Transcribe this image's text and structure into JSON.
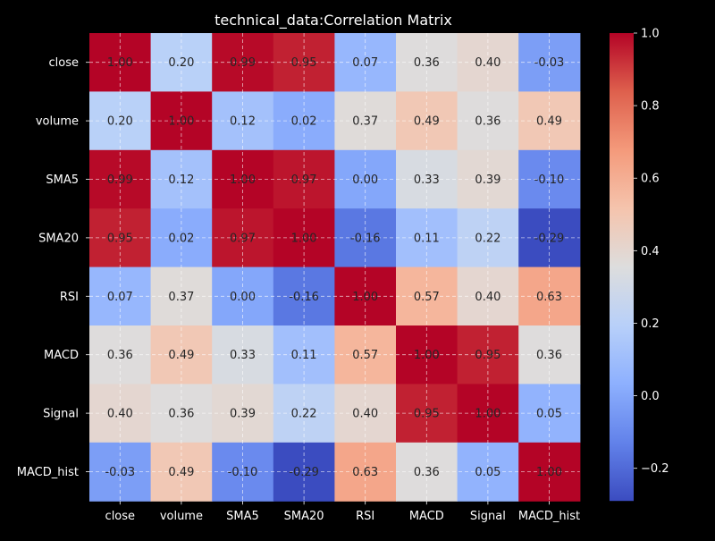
{
  "chart_data": {
    "type": "heatmap",
    "title": "technical_data:Correlation Matrix",
    "x_labels": [
      "close",
      "volume",
      "SMA5",
      "SMA20",
      "RSI",
      "MACD",
      "Signal",
      "MACD_hist"
    ],
    "y_labels": [
      "close",
      "volume",
      "SMA5",
      "SMA20",
      "RSI",
      "MACD",
      "Signal",
      "MACD_hist"
    ],
    "values": [
      [
        1.0,
        0.2,
        0.99,
        0.95,
        0.07,
        0.36,
        0.4,
        -0.03
      ],
      [
        0.2,
        1.0,
        0.12,
        0.02,
        0.37,
        0.49,
        0.36,
        0.49
      ],
      [
        0.99,
        0.12,
        1.0,
        0.97,
        0.0,
        0.33,
        0.39,
        -0.1
      ],
      [
        0.95,
        0.02,
        0.97,
        1.0,
        -0.16,
        0.11,
        0.22,
        -0.29
      ],
      [
        0.07,
        0.37,
        0.0,
        -0.16,
        1.0,
        0.57,
        0.4,
        0.63
      ],
      [
        0.36,
        0.49,
        0.33,
        0.11,
        0.57,
        1.0,
        0.95,
        0.36
      ],
      [
        0.4,
        0.36,
        0.39,
        0.22,
        0.4,
        0.95,
        1.0,
        0.05
      ],
      [
        -0.03,
        0.49,
        -0.1,
        -0.29,
        0.63,
        0.36,
        0.05,
        1.0
      ]
    ],
    "value_format": "0.00",
    "colormap": "coolwarm",
    "vmin": -0.29,
    "vmax": 1.0,
    "colorbar_ticks": [
      -0.2,
      0.0,
      0.2,
      0.4,
      0.6,
      0.8,
      1.0
    ],
    "colorbar_tick_labels": [
      "−0.2",
      "0.0",
      "0.2",
      "0.4",
      "0.6",
      "0.8",
      "1.0"
    ],
    "grid": true,
    "colors": {
      "background": "#000000",
      "text": "#ffffff",
      "annotation_text": "#262626",
      "grid": "#ffffff"
    }
  }
}
